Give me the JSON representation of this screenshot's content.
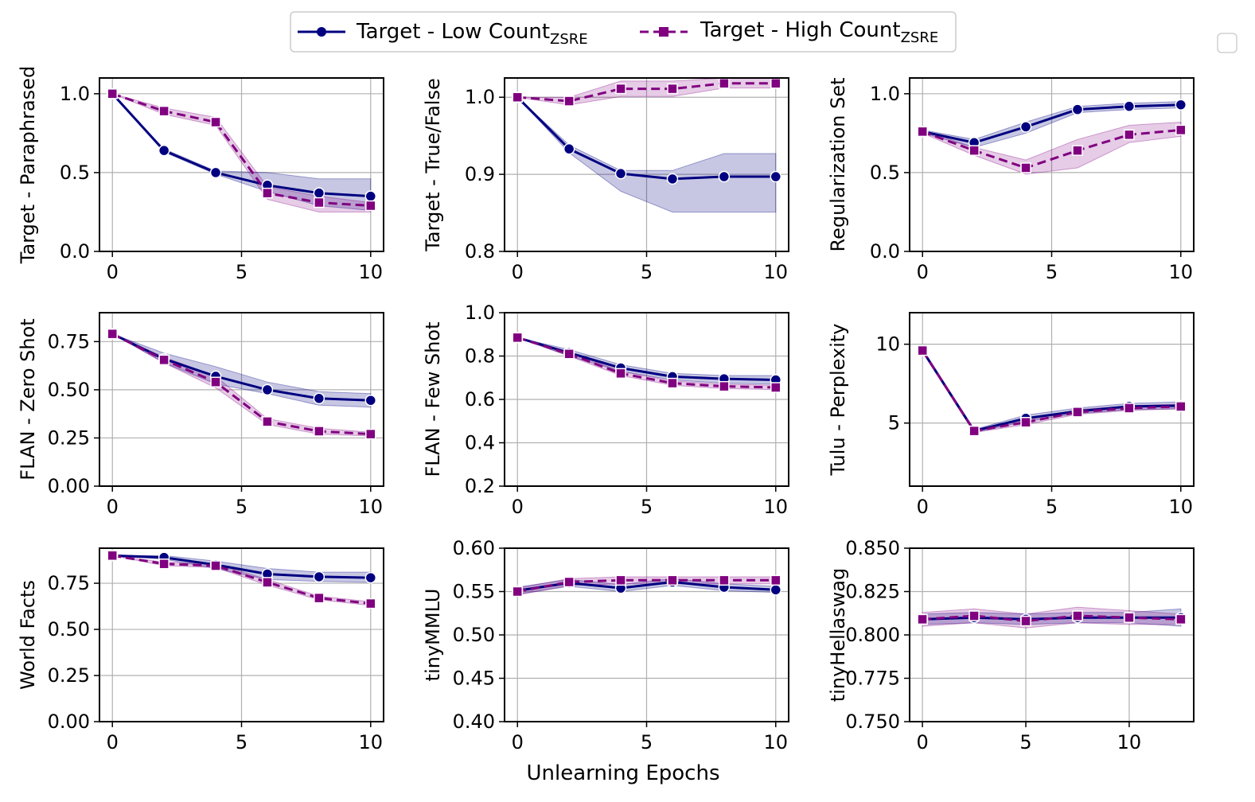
{
  "figure": {
    "xlabel": "Unlearning Epochs",
    "legend": {
      "position": "top-center",
      "entries": [
        {
          "label": "Target - Low Count",
          "subscript": "ZSRE",
          "color": "#000080",
          "marker": "circle",
          "linestyle": "solid"
        },
        {
          "label": "Target - High Count",
          "subscript": "ZSRE",
          "color": "#800080",
          "marker": "square",
          "linestyle": "dashed"
        }
      ]
    }
  },
  "chart_data": [
    {
      "type": "line",
      "ylabel": "Target - Paraphrased",
      "xlim": [
        -0.5,
        10.5
      ],
      "ylim": [
        0,
        1.1
      ],
      "xticks": [
        0,
        5,
        10
      ],
      "yticks": [
        0.0,
        0.5,
        1.0
      ],
      "ytick_labels": [
        "0.0",
        "0.5",
        "1.0"
      ],
      "grid": true,
      "x": [
        0,
        2,
        4,
        6,
        8,
        10
      ],
      "series": [
        {
          "name": "Target - Low Count ZSRE",
          "values": [
            1.0,
            0.64,
            0.5,
            0.42,
            0.37,
            0.35
          ],
          "band_low": [
            1.0,
            0.63,
            0.49,
            0.38,
            0.29,
            0.26
          ],
          "band_high": [
            1.0,
            0.65,
            0.51,
            0.5,
            0.46,
            0.46
          ]
        },
        {
          "name": "Target - High Count ZSRE",
          "values": [
            1.0,
            0.89,
            0.82,
            0.37,
            0.31,
            0.29
          ],
          "band_low": [
            1.0,
            0.87,
            0.8,
            0.33,
            0.25,
            0.25
          ],
          "band_high": [
            1.0,
            0.91,
            0.85,
            0.41,
            0.35,
            0.31
          ]
        }
      ]
    },
    {
      "type": "line",
      "ylabel": "Target - True/False",
      "xlim": [
        -0.5,
        10.5
      ],
      "ylim": [
        0.8,
        1.025
      ],
      "xticks": [
        0,
        5,
        10
      ],
      "yticks": [
        0.8,
        0.9,
        1.0
      ],
      "ytick_labels": [
        "0.8",
        "0.9",
        "1.0"
      ],
      "grid": true,
      "x": [
        0,
        2,
        4,
        6,
        8,
        10
      ],
      "series": [
        {
          "name": "Target - Low Count ZSRE",
          "values": [
            1.0,
            0.933,
            0.901,
            0.894,
            0.897,
            0.897
          ],
          "band_low": [
            1.0,
            0.928,
            0.878,
            0.851,
            0.851,
            0.851
          ],
          "band_high": [
            1.0,
            0.938,
            0.905,
            0.905,
            0.927,
            0.927
          ]
        },
        {
          "name": "Target - High Count ZSRE",
          "values": [
            1.0,
            0.995,
            1.011,
            1.011,
            1.018,
            1.018
          ],
          "band_low": [
            1.0,
            0.99,
            1.001,
            1.001,
            1.012,
            1.012
          ],
          "band_high": [
            1.0,
            1.0,
            1.021,
            1.021,
            1.025,
            1.025
          ]
        }
      ]
    },
    {
      "type": "line",
      "ylabel": "Regularization Set",
      "xlim": [
        -0.5,
        10.5
      ],
      "ylim": [
        0,
        1.1
      ],
      "xticks": [
        0,
        5,
        10
      ],
      "yticks": [
        0.0,
        0.5,
        1.0
      ],
      "ytick_labels": [
        "0.0",
        "0.5",
        "1.0"
      ],
      "grid": true,
      "x": [
        0,
        2,
        4,
        6,
        8,
        10
      ],
      "series": [
        {
          "name": "Target - Low Count ZSRE",
          "values": [
            0.76,
            0.69,
            0.79,
            0.9,
            0.92,
            0.93
          ],
          "band_low": [
            0.75,
            0.66,
            0.75,
            0.88,
            0.9,
            0.91
          ],
          "band_high": [
            0.77,
            0.71,
            0.82,
            0.92,
            0.94,
            0.95
          ]
        },
        {
          "name": "Target - High Count ZSRE",
          "values": [
            0.76,
            0.64,
            0.53,
            0.64,
            0.74,
            0.77
          ],
          "band_low": [
            0.75,
            0.61,
            0.49,
            0.53,
            0.69,
            0.73
          ],
          "band_high": [
            0.77,
            0.66,
            0.58,
            0.71,
            0.8,
            0.82
          ]
        }
      ]
    },
    {
      "type": "line",
      "ylabel": "FLAN - Zero Shot",
      "xlim": [
        -0.5,
        10.5
      ],
      "ylim": [
        0,
        0.9
      ],
      "xticks": [
        0,
        5,
        10
      ],
      "yticks": [
        0.0,
        0.25,
        0.5,
        0.75
      ],
      "ytick_labels": [
        "0.00",
        "0.25",
        "0.50",
        "0.75"
      ],
      "grid": true,
      "x": [
        0,
        2,
        4,
        6,
        8,
        10
      ],
      "series": [
        {
          "name": "Target - Low Count ZSRE",
          "values": [
            0.79,
            0.66,
            0.57,
            0.5,
            0.455,
            0.445
          ],
          "band_low": [
            0.79,
            0.64,
            0.53,
            0.48,
            0.42,
            0.41
          ],
          "band_high": [
            0.79,
            0.69,
            0.62,
            0.54,
            0.49,
            0.48
          ]
        },
        {
          "name": "Target - High Count ZSRE",
          "values": [
            0.79,
            0.655,
            0.54,
            0.335,
            0.285,
            0.27
          ],
          "band_low": [
            0.79,
            0.64,
            0.51,
            0.32,
            0.27,
            0.26
          ],
          "band_high": [
            0.79,
            0.67,
            0.57,
            0.35,
            0.3,
            0.28
          ]
        }
      ]
    },
    {
      "type": "line",
      "ylabel": "FLAN - Few Shot",
      "xlim": [
        -0.5,
        10.5
      ],
      "ylim": [
        0.2,
        1.0
      ],
      "xticks": [
        0,
        5,
        10
      ],
      "yticks": [
        0.2,
        0.4,
        0.6,
        0.8,
        1.0
      ],
      "ytick_labels": [
        "0.2",
        "0.4",
        "0.6",
        "0.8",
        "1.0"
      ],
      "grid": true,
      "x": [
        0,
        2,
        4,
        6,
        8,
        10
      ],
      "series": [
        {
          "name": "Target - Low Count ZSRE",
          "values": [
            0.885,
            0.815,
            0.745,
            0.705,
            0.695,
            0.69
          ],
          "band_low": [
            0.885,
            0.8,
            0.73,
            0.69,
            0.675,
            0.67
          ],
          "band_high": [
            0.885,
            0.83,
            0.76,
            0.72,
            0.71,
            0.71
          ]
        },
        {
          "name": "Target - High Count ZSRE",
          "values": [
            0.885,
            0.81,
            0.72,
            0.675,
            0.66,
            0.655
          ],
          "band_low": [
            0.885,
            0.8,
            0.71,
            0.665,
            0.65,
            0.645
          ],
          "band_high": [
            0.885,
            0.82,
            0.73,
            0.685,
            0.67,
            0.665
          ]
        }
      ]
    },
    {
      "type": "line",
      "ylabel": "Tulu - Perplexity",
      "xlim": [
        -0.5,
        10.5
      ],
      "ylim": [
        1,
        12
      ],
      "xticks": [
        0,
        5,
        10
      ],
      "yticks": [
        5,
        10
      ],
      "ytick_labels": [
        "5",
        "10"
      ],
      "grid": true,
      "x": [
        0,
        2,
        4,
        6,
        8,
        10
      ],
      "series": [
        {
          "name": "Target - Low Count ZSRE",
          "values": [
            9.6,
            4.5,
            5.3,
            5.75,
            6.05,
            6.1
          ],
          "band_low": [
            9.5,
            4.4,
            5.1,
            5.6,
            5.85,
            5.9
          ],
          "band_high": [
            9.7,
            4.6,
            5.5,
            5.95,
            6.25,
            6.35
          ]
        },
        {
          "name": "Target - High Count ZSRE",
          "values": [
            9.6,
            4.5,
            5.05,
            5.7,
            5.95,
            6.05
          ],
          "band_low": [
            9.5,
            4.4,
            4.9,
            5.55,
            5.8,
            5.9
          ],
          "band_high": [
            9.7,
            4.6,
            5.2,
            5.85,
            6.1,
            6.2
          ]
        }
      ]
    },
    {
      "type": "line",
      "ylabel": "World Facts",
      "xlim": [
        -0.5,
        10.5
      ],
      "ylim": [
        0,
        0.94
      ],
      "xticks": [
        0,
        5,
        10
      ],
      "yticks": [
        0.0,
        0.25,
        0.5,
        0.75
      ],
      "ytick_labels": [
        "0.00",
        "0.25",
        "0.50",
        "0.75"
      ],
      "grid": true,
      "x": [
        0,
        2,
        4,
        6,
        8,
        10
      ],
      "series": [
        {
          "name": "Target - Low Count ZSRE",
          "values": [
            0.9,
            0.89,
            0.85,
            0.8,
            0.785,
            0.78
          ],
          "band_low": [
            0.9,
            0.88,
            0.83,
            0.77,
            0.76,
            0.755
          ],
          "band_high": [
            0.9,
            0.9,
            0.87,
            0.83,
            0.81,
            0.81
          ]
        },
        {
          "name": "Target - High Count ZSRE",
          "values": [
            0.9,
            0.855,
            0.845,
            0.755,
            0.67,
            0.64
          ],
          "band_low": [
            0.9,
            0.845,
            0.835,
            0.74,
            0.66,
            0.63
          ],
          "band_high": [
            0.9,
            0.865,
            0.855,
            0.77,
            0.68,
            0.65
          ]
        }
      ]
    },
    {
      "type": "line",
      "ylabel": "tinyMMLU",
      "xlim": [
        -0.5,
        10.5
      ],
      "ylim": [
        0.4,
        0.6
      ],
      "xticks": [
        0,
        5,
        10
      ],
      "yticks": [
        0.4,
        0.45,
        0.5,
        0.55,
        0.6
      ],
      "ytick_labels": [
        "0.40",
        "0.45",
        "0.50",
        "0.55",
        "0.60"
      ],
      "grid": true,
      "x": [
        0,
        2,
        4,
        6,
        8,
        10
      ],
      "series": [
        {
          "name": "Target - Low Count ZSRE",
          "values": [
            0.551,
            0.56,
            0.554,
            0.561,
            0.555,
            0.552
          ],
          "band_low": [
            0.547,
            0.556,
            0.55,
            0.557,
            0.551,
            0.549
          ],
          "band_high": [
            0.555,
            0.564,
            0.558,
            0.565,
            0.559,
            0.556
          ]
        },
        {
          "name": "Target - High Count ZSRE",
          "values": [
            0.55,
            0.561,
            0.563,
            0.563,
            0.563,
            0.563
          ],
          "band_low": [
            0.546,
            0.557,
            0.559,
            0.559,
            0.559,
            0.559
          ],
          "band_high": [
            0.554,
            0.565,
            0.567,
            0.567,
            0.567,
            0.567
          ]
        }
      ]
    },
    {
      "type": "line",
      "ylabel": "tinyHellaswag",
      "xlim": [
        -0.62,
        13.12
      ],
      "ylim": [
        0.75,
        0.85
      ],
      "xticks": [
        0,
        5,
        10
      ],
      "yticks": [
        0.75,
        0.775,
        0.8,
        0.825,
        0.85
      ],
      "ytick_labels": [
        "0.750",
        "0.775",
        "0.800",
        "0.825",
        "0.850"
      ],
      "grid": true,
      "x": [
        0,
        2.5,
        5,
        7.5,
        10,
        12.5
      ],
      "series": [
        {
          "name": "Target - Low Count ZSRE",
          "values": [
            0.809,
            0.81,
            0.809,
            0.81,
            0.81,
            0.81
          ],
          "band_low": [
            0.806,
            0.807,
            0.806,
            0.807,
            0.807,
            0.805
          ],
          "band_high": [
            0.812,
            0.813,
            0.812,
            0.813,
            0.813,
            0.815
          ]
        },
        {
          "name": "Target - High Count ZSRE",
          "values": [
            0.809,
            0.811,
            0.808,
            0.811,
            0.81,
            0.809
          ],
          "band_low": [
            0.805,
            0.807,
            0.804,
            0.807,
            0.806,
            0.806
          ],
          "band_high": [
            0.813,
            0.815,
            0.812,
            0.816,
            0.814,
            0.812
          ]
        }
      ]
    }
  ]
}
